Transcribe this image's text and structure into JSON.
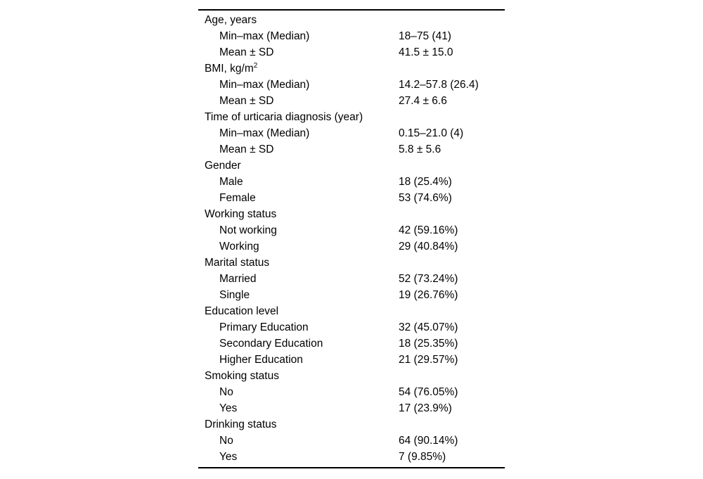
{
  "table": {
    "rows": [
      {
        "label": "Age, years",
        "value": "",
        "indent": 0
      },
      {
        "label": "Min–max (Median)",
        "value": "18–75 (41)",
        "indent": 1
      },
      {
        "label": "Mean ± SD",
        "value": "41.5 ± 15.0",
        "indent": 1
      },
      {
        "label": "BMI, kg/m",
        "sup": "2",
        "value": "",
        "indent": 0
      },
      {
        "label": "Min–max (Median)",
        "value": "14.2–57.8 (26.4)",
        "indent": 1
      },
      {
        "label": "Mean ± SD",
        "value": "27.4 ± 6.6",
        "indent": 1
      },
      {
        "label": "Time of urticaria diagnosis (year)",
        "value": "",
        "indent": 0
      },
      {
        "label": "Min–max (Median)",
        "value": "0.15–21.0 (4)",
        "indent": 1
      },
      {
        "label": "Mean ± SD",
        "value": "5.8 ± 5.6",
        "indent": 1
      },
      {
        "label": "Gender",
        "value": "",
        "indent": 0
      },
      {
        "label": "Male",
        "value": "18 (25.4%)",
        "indent": 1
      },
      {
        "label": "Female",
        "value": "53 (74.6%)",
        "indent": 1
      },
      {
        "label": "Working status",
        "value": "",
        "indent": 0
      },
      {
        "label": "Not working",
        "value": "42 (59.16%)",
        "indent": 1
      },
      {
        "label": "Working",
        "value": "29 (40.84%)",
        "indent": 1
      },
      {
        "label": "Marital status",
        "value": "",
        "indent": 0
      },
      {
        "label": "Married",
        "value": "52 (73.24%)",
        "indent": 1
      },
      {
        "label": "Single",
        "value": "19 (26.76%)",
        "indent": 1
      },
      {
        "label": "Education level",
        "value": "",
        "indent": 0
      },
      {
        "label": "Primary Education",
        "value": "32 (45.07%)",
        "indent": 1
      },
      {
        "label": "Secondary Education",
        "value": "18 (25.35%)",
        "indent": 1
      },
      {
        "label": "Higher Education",
        "value": "21 (29.57%)",
        "indent": 1
      },
      {
        "label": "Smoking status",
        "value": "",
        "indent": 0
      },
      {
        "label": "No",
        "value": "54 (76.05%)",
        "indent": 1
      },
      {
        "label": "Yes",
        "value": "17 (23.9%)",
        "indent": 1
      },
      {
        "label": "Drinking status",
        "value": "",
        "indent": 0
      },
      {
        "label": "No",
        "value": "64 (90.14%)",
        "indent": 1
      },
      {
        "label": "Yes",
        "value": "7 (9.85%)",
        "indent": 1
      }
    ]
  }
}
